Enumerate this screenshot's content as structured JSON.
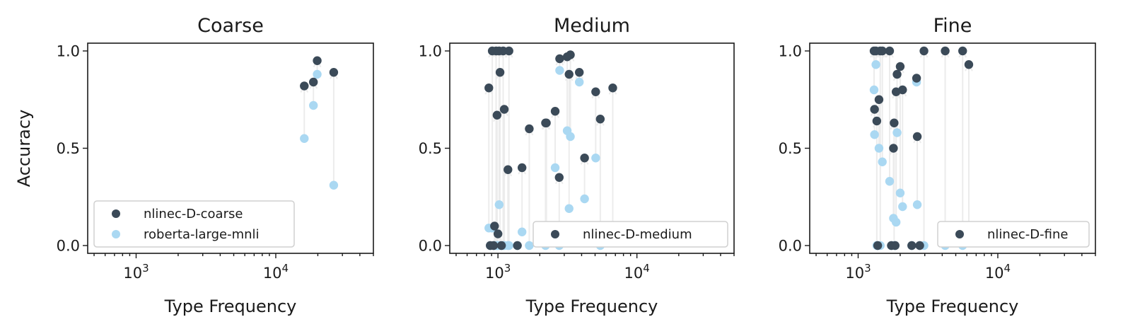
{
  "colors": {
    "finetuned": "#3b4a58",
    "baseline": "#aad8f2",
    "arrow": "#ececec"
  },
  "y_axis_label": "Accuracy",
  "chart_data": [
    {
      "type": "scatter",
      "title": "Coarse",
      "xlabel": "Type Frequency",
      "ylabel": "Accuracy",
      "x_scale": "log",
      "xlim": [
        450,
        50000
      ],
      "ylim": [
        -0.04,
        1.04
      ],
      "x_ticks": [
        {
          "value": 1000,
          "base": "10",
          "exp": "3"
        },
        {
          "value": 10000,
          "base": "10",
          "exp": "4"
        }
      ],
      "y_ticks": [
        {
          "value": 0.0,
          "label": "0.0"
        },
        {
          "value": 0.5,
          "label": "0.5"
        },
        {
          "value": 1.0,
          "label": "1.0"
        }
      ],
      "legend": {
        "position": "lower-left",
        "entries": [
          {
            "label": "nlinec-D-coarse",
            "series": "finetuned"
          },
          {
            "label": "roberta-large-mnli",
            "series": "baseline"
          }
        ]
      },
      "points": [
        {
          "x": 16000,
          "base": 0.55,
          "ft": 0.82
        },
        {
          "x": 18600,
          "base": 0.72,
          "ft": 0.84
        },
        {
          "x": 19800,
          "base": 0.88,
          "ft": 0.95
        },
        {
          "x": 26000,
          "base": 0.31,
          "ft": 0.89
        }
      ]
    },
    {
      "type": "scatter",
      "title": "Medium",
      "xlabel": "Type Frequency",
      "x_scale": "log",
      "xlim": [
        450,
        50000
      ],
      "ylim": [
        -0.04,
        1.04
      ],
      "x_ticks": [
        {
          "value": 1000,
          "base": "10",
          "exp": "3"
        },
        {
          "value": 10000,
          "base": "10",
          "exp": "4"
        }
      ],
      "y_ticks": [
        {
          "value": 0.0,
          "label": "0.0"
        },
        {
          "value": 0.5,
          "label": "0.5"
        },
        {
          "value": 1.0,
          "label": "1.0"
        }
      ],
      "legend": {
        "position": "lower-right",
        "entries": [
          {
            "label": "nlinec-D-medium",
            "series": "finetuned"
          }
        ]
      },
      "points": [
        {
          "x": 860,
          "base": 0.09,
          "ft": 0.81
        },
        {
          "x": 880,
          "base": 0.0,
          "ft": 0.0
        },
        {
          "x": 910,
          "base": 0.09,
          "ft": 1.0
        },
        {
          "x": 930,
          "base": 0.0,
          "ft": 0.0
        },
        {
          "x": 945,
          "base": 0.0,
          "ft": 0.1
        },
        {
          "x": 970,
          "base": 0.0,
          "ft": 1.0
        },
        {
          "x": 985,
          "base": 0.0,
          "ft": 0.67
        },
        {
          "x": 1000,
          "base": 0.0,
          "ft": 0.06
        },
        {
          "x": 1020,
          "base": 0.21,
          "ft": 1.0
        },
        {
          "x": 1035,
          "base": 0.0,
          "ft": 0.89
        },
        {
          "x": 1060,
          "base": 0.0,
          "ft": 0.0
        },
        {
          "x": 1090,
          "base": 0.0,
          "ft": 1.0
        },
        {
          "x": 1110,
          "base": 0.0,
          "ft": 0.7
        },
        {
          "x": 1180,
          "base": 0.0,
          "ft": 0.39
        },
        {
          "x": 1200,
          "base": 0.0,
          "ft": 1.0
        },
        {
          "x": 1380,
          "base": 0.0,
          "ft": 0.0
        },
        {
          "x": 1490,
          "base": 0.07,
          "ft": 0.4
        },
        {
          "x": 1680,
          "base": 0.0,
          "ft": 0.6
        },
        {
          "x": 2200,
          "base": 0.0,
          "ft": 0.63
        },
        {
          "x": 2230,
          "base": 0.09,
          "ft": 0.63
        },
        {
          "x": 2580,
          "base": 0.4,
          "ft": 0.69
        },
        {
          "x": 2760,
          "base": 0.0,
          "ft": 0.35
        },
        {
          "x": 2780,
          "base": 0.9,
          "ft": 0.96
        },
        {
          "x": 3150,
          "base": 0.59,
          "ft": 0.97
        },
        {
          "x": 3250,
          "base": 0.19,
          "ft": 0.88
        },
        {
          "x": 3320,
          "base": 0.56,
          "ft": 0.98
        },
        {
          "x": 3850,
          "base": 0.84,
          "ft": 0.89
        },
        {
          "x": 4200,
          "base": 0.24,
          "ft": 0.45
        },
        {
          "x": 5050,
          "base": 0.45,
          "ft": 0.79
        },
        {
          "x": 5450,
          "base": 0.0,
          "ft": 0.65
        },
        {
          "x": 6700,
          "base": 0.02,
          "ft": 0.81
        }
      ]
    },
    {
      "type": "scatter",
      "title": "Fine",
      "xlabel": "Type Frequency",
      "x_scale": "log",
      "xlim": [
        450,
        50000
      ],
      "ylim": [
        -0.04,
        1.04
      ],
      "x_ticks": [
        {
          "value": 1000,
          "base": "10",
          "exp": "3"
        },
        {
          "value": 10000,
          "base": "10",
          "exp": "4"
        }
      ],
      "y_ticks": [
        {
          "value": 0.0,
          "label": "0.0"
        },
        {
          "value": 0.5,
          "label": "0.5"
        },
        {
          "value": 1.0,
          "label": "1.0"
        }
      ],
      "legend": {
        "position": "lower-right",
        "entries": [
          {
            "label": "nlinec-D-fine",
            "series": "finetuned"
          }
        ]
      },
      "points": [
        {
          "x": 1300,
          "base": 0.8,
          "ft": 1.0
        },
        {
          "x": 1310,
          "base": 0.57,
          "ft": 0.7
        },
        {
          "x": 1340,
          "base": 0.93,
          "ft": 1.0
        },
        {
          "x": 1360,
          "base": 0.0,
          "ft": 0.64
        },
        {
          "x": 1380,
          "base": 0.0,
          "ft": 0.0
        },
        {
          "x": 1410,
          "base": 0.5,
          "ft": 0.75
        },
        {
          "x": 1440,
          "base": 0.0,
          "ft": 1.0
        },
        {
          "x": 1490,
          "base": 0.43,
          "ft": 1.0
        },
        {
          "x": 1680,
          "base": 0.33,
          "ft": 1.0
        },
        {
          "x": 1730,
          "base": 0.0,
          "ft": 0.0
        },
        {
          "x": 1790,
          "base": 0.14,
          "ft": 0.5
        },
        {
          "x": 1810,
          "base": 0.0,
          "ft": 0.63
        },
        {
          "x": 1840,
          "base": 0.0,
          "ft": 0.0
        },
        {
          "x": 1870,
          "base": 0.12,
          "ft": 0.79
        },
        {
          "x": 1900,
          "base": 0.58,
          "ft": 0.88
        },
        {
          "x": 2000,
          "base": 0.27,
          "ft": 0.92
        },
        {
          "x": 2080,
          "base": 0.2,
          "ft": 0.8
        },
        {
          "x": 2420,
          "base": 0.0,
          "ft": 0.0
        },
        {
          "x": 2620,
          "base": 0.84,
          "ft": 0.86
        },
        {
          "x": 2650,
          "base": 0.21,
          "ft": 0.56
        },
        {
          "x": 2760,
          "base": 0.0,
          "ft": 0.0
        },
        {
          "x": 2960,
          "base": 0.0,
          "ft": 1.0
        },
        {
          "x": 4200,
          "base": 0.0,
          "ft": 1.0
        },
        {
          "x": 5600,
          "base": 0.0,
          "ft": 1.0
        },
        {
          "x": 6200,
          "base": 0.05,
          "ft": 0.93
        }
      ]
    }
  ]
}
